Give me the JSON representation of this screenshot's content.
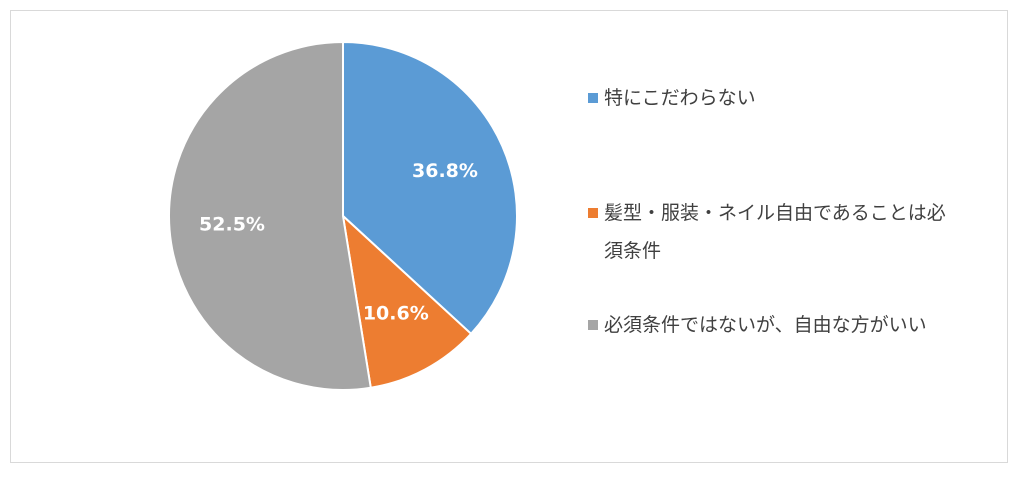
{
  "chart_data": {
    "type": "pie",
    "categories": [
      "特にこだわらない",
      "髪型・服装・ネイル自由であることは必須条件",
      "必須条件ではないが、自由な方がいい"
    ],
    "values": [
      36.8,
      10.6,
      52.5
    ],
    "value_labels": [
      "36.8%",
      "10.6%",
      "52.5%"
    ],
    "colors": [
      "#5b9bd5",
      "#ed7d31",
      "#a5a5a5"
    ],
    "legend": "right"
  }
}
